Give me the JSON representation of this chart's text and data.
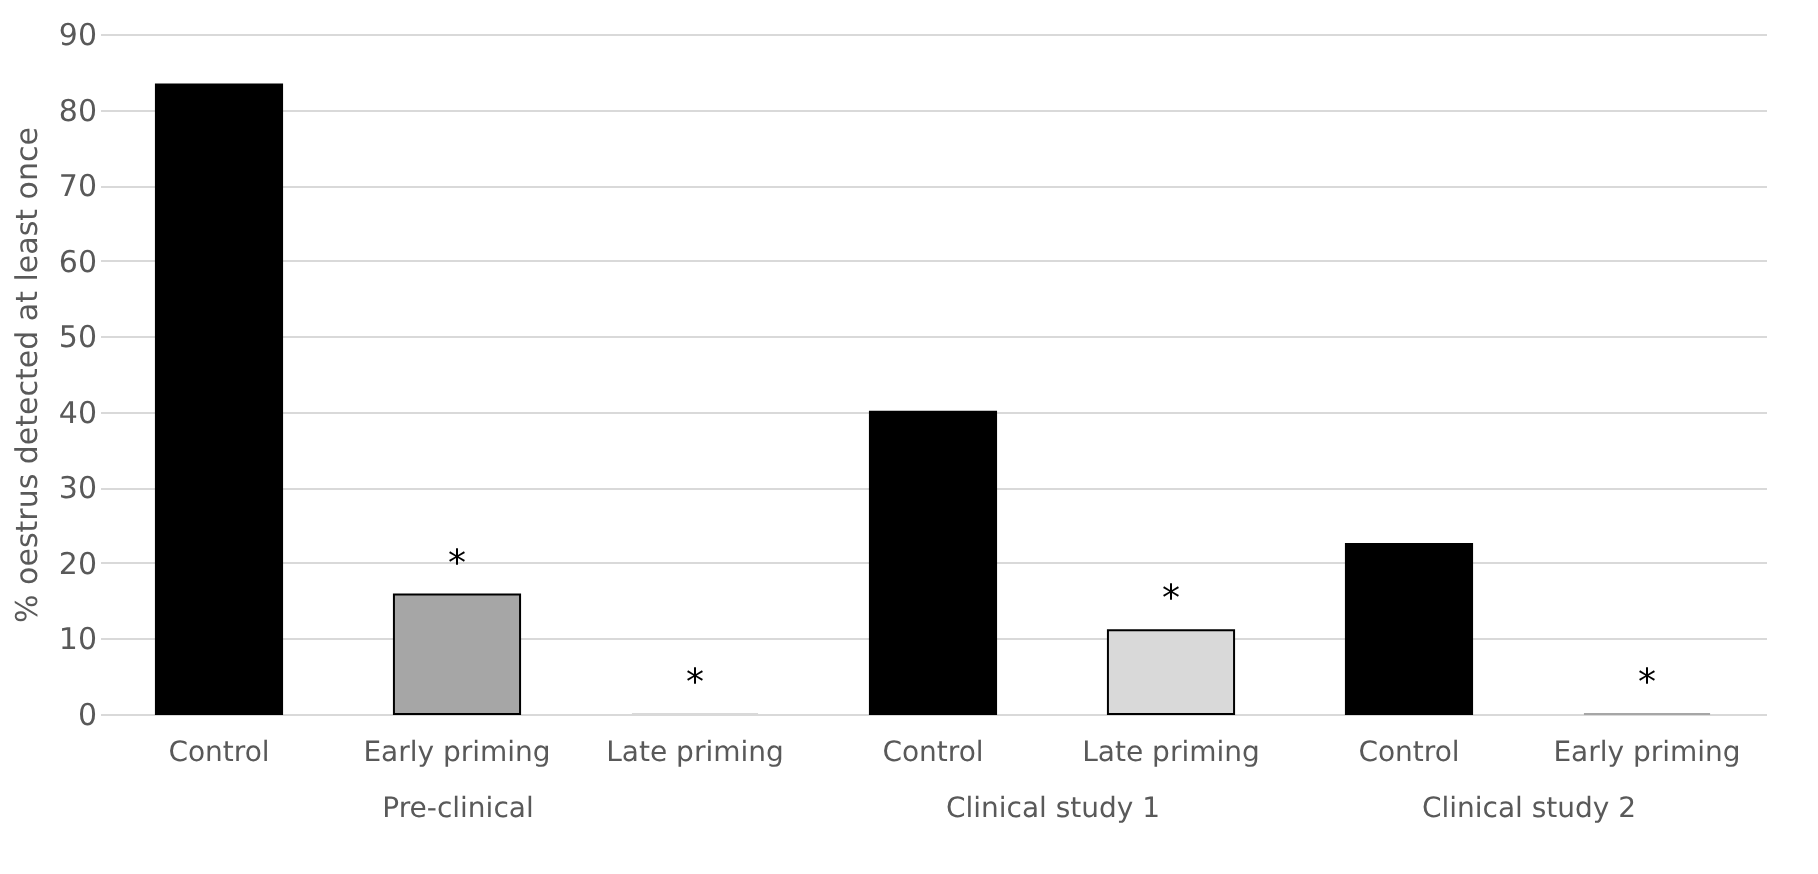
{
  "chart_data": [
    {
      "type": "bar",
      "xlabel": "Pre-clinical",
      "ylabel": "% oestrus detected at least once",
      "categories": [
        "Control",
        "Early priming",
        "Late priming"
      ],
      "values": [
        83.3,
        15.8,
        0
      ],
      "colors": [
        "#000000",
        "#a6a6a6",
        "#d9d9d9"
      ],
      "value_labels": [
        null,
        "*",
        "*"
      ],
      "ylim": [
        0,
        90
      ],
      "yticks": [
        0,
        10,
        20,
        30,
        40,
        50,
        60,
        70,
        80,
        90
      ],
      "grid": "y"
    },
    {
      "type": "bar",
      "xlabel": "Clinical study 1",
      "categories": [
        "Control",
        "Late priming"
      ],
      "values": [
        40,
        11.1
      ],
      "colors": [
        "#000000",
        "#d9d9d9"
      ],
      "value_labels": [
        null,
        "*"
      ],
      "ylim": [
        0,
        90
      ],
      "yticks": [
        0,
        10,
        20,
        30,
        40,
        50,
        60,
        70,
        80,
        90
      ],
      "grid": "y",
      "tick_labels": "x"
    },
    {
      "type": "bar",
      "xlabel": "Clinical study 2",
      "categories": [
        "Control",
        "Early priming"
      ],
      "values": [
        22.5,
        0
      ],
      "colors": [
        "#000000",
        "#a6a6a6"
      ],
      "value_labels": [
        null,
        "*"
      ],
      "ylim": [
        0,
        90
      ],
      "yticks": [
        0,
        10,
        20,
        30,
        40,
        50,
        60,
        70,
        80,
        90
      ],
      "grid": "y",
      "tick_labels": "x"
    }
  ]
}
